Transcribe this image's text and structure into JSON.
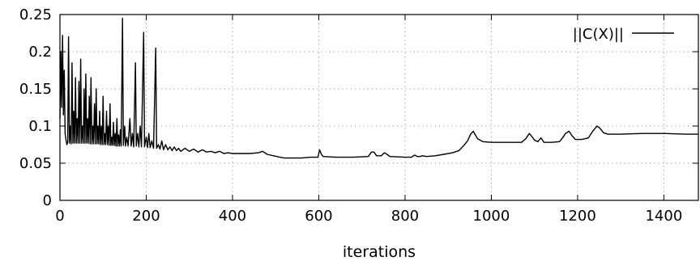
{
  "chart_data": {
    "type": "line",
    "title": "",
    "xlabel": "iterations",
    "ylabel": "",
    "xlim": [
      0,
      1480
    ],
    "ylim": [
      0,
      0.25
    ],
    "grid": true,
    "legend_position": "top-right",
    "xticks": [
      0,
      200,
      400,
      600,
      800,
      1000,
      1200,
      1400
    ],
    "xtick_labels": [
      "0",
      "200",
      "400",
      "600",
      "800",
      "1000",
      "1200",
      "1400"
    ],
    "yticks": [
      0,
      0.05,
      0.1,
      0.15,
      0.2,
      0.25
    ],
    "ytick_labels": [
      "0",
      "0.05",
      "0.1",
      "0.15",
      "0.2",
      "0.25"
    ],
    "series": [
      {
        "name": "||C(X)||",
        "color": "#000000",
        "points": [
          [
            0,
            0.11
          ],
          [
            2,
            0.2
          ],
          [
            4,
            0.125
          ],
          [
            6,
            0.222
          ],
          [
            8,
            0.115
          ],
          [
            10,
            0.175
          ],
          [
            12,
            0.09
          ],
          [
            14,
            0.081
          ],
          [
            16,
            0.075
          ],
          [
            18,
            0.078
          ],
          [
            20,
            0.22
          ],
          [
            22,
            0.077
          ],
          [
            24,
            0.1
          ],
          [
            26,
            0.076
          ],
          [
            28,
            0.185
          ],
          [
            30,
            0.077
          ],
          [
            32,
            0.12
          ],
          [
            34,
            0.077
          ],
          [
            36,
            0.165
          ],
          [
            38,
            0.077
          ],
          [
            40,
            0.11
          ],
          [
            42,
            0.077
          ],
          [
            44,
            0.16
          ],
          [
            46,
            0.077
          ],
          [
            48,
            0.19
          ],
          [
            50,
            0.077
          ],
          [
            52,
            0.1
          ],
          [
            54,
            0.077
          ],
          [
            56,
            0.15
          ],
          [
            58,
            0.077
          ],
          [
            60,
            0.17
          ],
          [
            62,
            0.077
          ],
          [
            64,
            0.11
          ],
          [
            66,
            0.077
          ],
          [
            68,
            0.14
          ],
          [
            70,
            0.076
          ],
          [
            72,
            0.165
          ],
          [
            74,
            0.076
          ],
          [
            76,
            0.1
          ],
          [
            78,
            0.076
          ],
          [
            80,
            0.13
          ],
          [
            82,
            0.076
          ],
          [
            84,
            0.15
          ],
          [
            86,
            0.076
          ],
          [
            88,
            0.1
          ],
          [
            90,
            0.076
          ],
          [
            92,
            0.12
          ],
          [
            94,
            0.075
          ],
          [
            96,
            0.1
          ],
          [
            98,
            0.075
          ],
          [
            100,
            0.14
          ],
          [
            102,
            0.075
          ],
          [
            104,
            0.09
          ],
          [
            106,
            0.075
          ],
          [
            108,
            0.12
          ],
          [
            110,
            0.075
          ],
          [
            112,
            0.1
          ],
          [
            114,
            0.074
          ],
          [
            116,
            0.13
          ],
          [
            118,
            0.074
          ],
          [
            120,
            0.085
          ],
          [
            122,
            0.074
          ],
          [
            124,
            0.105
          ],
          [
            126,
            0.074
          ],
          [
            128,
            0.09
          ],
          [
            130,
            0.073
          ],
          [
            132,
            0.11
          ],
          [
            134,
            0.073
          ],
          [
            136,
            0.088
          ],
          [
            138,
            0.073
          ],
          [
            140,
            0.095
          ],
          [
            142,
            0.073
          ],
          [
            145,
            0.245
          ],
          [
            147,
            0.074
          ],
          [
            150,
            0.1
          ],
          [
            152,
            0.073
          ],
          [
            155,
            0.085
          ],
          [
            158,
            0.073
          ],
          [
            162,
            0.11
          ],
          [
            165,
            0.073
          ],
          [
            168,
            0.09
          ],
          [
            171,
            0.072
          ],
          [
            175,
            0.185
          ],
          [
            177,
            0.073
          ],
          [
            180,
            0.09
          ],
          [
            183,
            0.072
          ],
          [
            186,
            0.1
          ],
          [
            189,
            0.072
          ],
          [
            194,
            0.226
          ],
          [
            196,
            0.072
          ],
          [
            200,
            0.085
          ],
          [
            203,
            0.071
          ],
          [
            206,
            0.09
          ],
          [
            209,
            0.071
          ],
          [
            213,
            0.08
          ],
          [
            217,
            0.07
          ],
          [
            222,
            0.205
          ],
          [
            224,
            0.07
          ],
          [
            228,
            0.075
          ],
          [
            232,
            0.069
          ],
          [
            236,
            0.08
          ],
          [
            240,
            0.068
          ],
          [
            245,
            0.075
          ],
          [
            250,
            0.068
          ],
          [
            255,
            0.072
          ],
          [
            260,
            0.067
          ],
          [
            265,
            0.072
          ],
          [
            270,
            0.067
          ],
          [
            275,
            0.07
          ],
          [
            280,
            0.066
          ],
          [
            290,
            0.07
          ],
          [
            300,
            0.066
          ],
          [
            310,
            0.069
          ],
          [
            320,
            0.065
          ],
          [
            330,
            0.068
          ],
          [
            340,
            0.065
          ],
          [
            350,
            0.066
          ],
          [
            360,
            0.064
          ],
          [
            370,
            0.066
          ],
          [
            380,
            0.063
          ],
          [
            390,
            0.064
          ],
          [
            400,
            0.063
          ],
          [
            420,
            0.063
          ],
          [
            440,
            0.063
          ],
          [
            460,
            0.064
          ],
          [
            470,
            0.066
          ],
          [
            480,
            0.062
          ],
          [
            495,
            0.06
          ],
          [
            510,
            0.058
          ],
          [
            520,
            0.057
          ],
          [
            540,
            0.057
          ],
          [
            560,
            0.057
          ],
          [
            580,
            0.058
          ],
          [
            598,
            0.058
          ],
          [
            602,
            0.068
          ],
          [
            606,
            0.062
          ],
          [
            610,
            0.059
          ],
          [
            640,
            0.058
          ],
          [
            680,
            0.058
          ],
          [
            715,
            0.059
          ],
          [
            722,
            0.065
          ],
          [
            728,
            0.065
          ],
          [
            734,
            0.06
          ],
          [
            745,
            0.06
          ],
          [
            752,
            0.064
          ],
          [
            758,
            0.062
          ],
          [
            765,
            0.059
          ],
          [
            800,
            0.058
          ],
          [
            815,
            0.058
          ],
          [
            822,
            0.061
          ],
          [
            828,
            0.059
          ],
          [
            835,
            0.059
          ],
          [
            840,
            0.06
          ],
          [
            850,
            0.059
          ],
          [
            870,
            0.06
          ],
          [
            890,
            0.062
          ],
          [
            910,
            0.064
          ],
          [
            925,
            0.067
          ],
          [
            935,
            0.073
          ],
          [
            945,
            0.08
          ],
          [
            952,
            0.089
          ],
          [
            958,
            0.093
          ],
          [
            962,
            0.089
          ],
          [
            968,
            0.083
          ],
          [
            980,
            0.079
          ],
          [
            1000,
            0.078
          ],
          [
            1040,
            0.078
          ],
          [
            1070,
            0.078
          ],
          [
            1080,
            0.083
          ],
          [
            1088,
            0.09
          ],
          [
            1094,
            0.086
          ],
          [
            1100,
            0.081
          ],
          [
            1108,
            0.079
          ],
          [
            1115,
            0.084
          ],
          [
            1122,
            0.078
          ],
          [
            1140,
            0.078
          ],
          [
            1158,
            0.079
          ],
          [
            1165,
            0.084
          ],
          [
            1172,
            0.09
          ],
          [
            1180,
            0.093
          ],
          [
            1187,
            0.087
          ],
          [
            1195,
            0.082
          ],
          [
            1210,
            0.082
          ],
          [
            1225,
            0.084
          ],
          [
            1235,
            0.093
          ],
          [
            1245,
            0.1
          ],
          [
            1252,
            0.097
          ],
          [
            1260,
            0.091
          ],
          [
            1270,
            0.089
          ],
          [
            1300,
            0.089
          ],
          [
            1350,
            0.09
          ],
          [
            1400,
            0.09
          ],
          [
            1450,
            0.089
          ],
          [
            1480,
            0.089
          ]
        ]
      }
    ]
  }
}
